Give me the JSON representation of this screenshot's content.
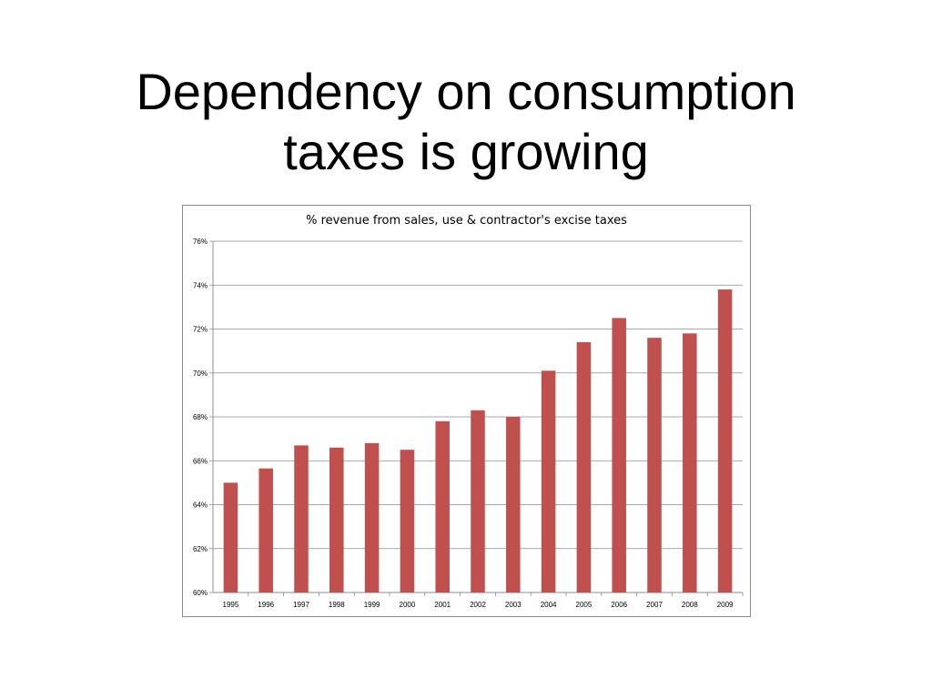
{
  "slide": {
    "title_line1": "Dependency on consumption",
    "title_line2": "taxes is growing"
  },
  "chart_data": {
    "type": "bar",
    "title": "% revenue from sales, use & contractor's excise taxes",
    "categories": [
      "1995",
      "1996",
      "1997",
      "1998",
      "1999",
      "2000",
      "2001",
      "2002",
      "2003",
      "2004",
      "2005",
      "2006",
      "2007",
      "2008",
      "2009"
    ],
    "values": [
      65.0,
      65.65,
      66.7,
      66.6,
      66.8,
      66.5,
      67.8,
      68.3,
      68.0,
      70.1,
      71.4,
      72.5,
      71.6,
      71.8,
      73.8
    ],
    "ylim": [
      60,
      76
    ],
    "yticks": [
      "60%",
      "62%",
      "64%",
      "66%",
      "68%",
      "70%",
      "72%",
      "74%",
      "76%"
    ],
    "xlabel": "",
    "ylabel": "",
    "grid": true,
    "bar_color": "#c0504d",
    "grid_color": "#8c8c8c"
  }
}
